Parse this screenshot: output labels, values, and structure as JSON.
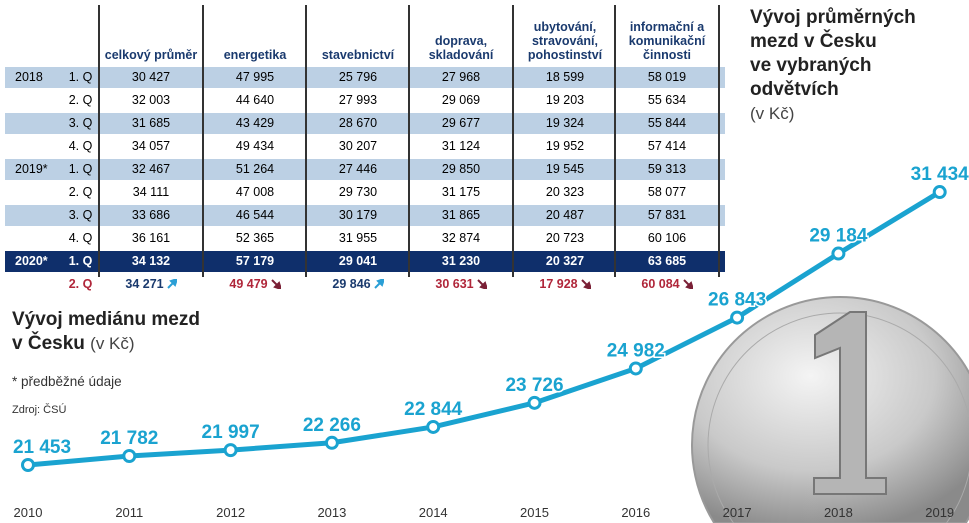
{
  "table": {
    "columns": [
      "celkový průměr",
      "energetika",
      "stavebnictví",
      "doprava, skladování",
      "ubytování, stravování, pohostinství",
      "informační a komunikační činnosti"
    ],
    "rows": [
      {
        "year": "2018",
        "quarter": "1. Q",
        "values": [
          "30 427",
          "47 995",
          "25 796",
          "27 968",
          "18 599",
          "58 019"
        ]
      },
      {
        "year": "",
        "quarter": "2. Q",
        "values": [
          "32 003",
          "44 640",
          "27 993",
          "29 069",
          "19 203",
          "55 634"
        ]
      },
      {
        "year": "",
        "quarter": "3. Q",
        "values": [
          "31 685",
          "43 429",
          "28 670",
          "29 677",
          "19 324",
          "55 844"
        ]
      },
      {
        "year": "",
        "quarter": "4. Q",
        "values": [
          "34 057",
          "49 434",
          "30 207",
          "31 124",
          "19 952",
          "57 414"
        ]
      },
      {
        "year": "2019*",
        "quarter": "1. Q",
        "values": [
          "32 467",
          "51 264",
          "27 446",
          "29 850",
          "19 545",
          "59 313"
        ]
      },
      {
        "year": "",
        "quarter": "2. Q",
        "values": [
          "34 111",
          "47 008",
          "29 730",
          "31 175",
          "20 323",
          "58 077"
        ]
      },
      {
        "year": "",
        "quarter": "3. Q",
        "values": [
          "33 686",
          "46 544",
          "30 179",
          "31 865",
          "20 487",
          "57 831"
        ]
      },
      {
        "year": "",
        "quarter": "4. Q",
        "values": [
          "36 161",
          "52 365",
          "31 955",
          "32 874",
          "20 723",
          "60 106"
        ]
      },
      {
        "year": "2020*",
        "quarter": "1. Q",
        "values": [
          "34 132",
          "57 179",
          "29 041",
          "31 230",
          "20 327",
          "63 685"
        ]
      },
      {
        "year": "",
        "quarter": "2. Q",
        "values": [
          "34 271",
          "49 479",
          "29 846",
          "30 631",
          "17 928",
          "60 084"
        ],
        "trend": [
          "up",
          "down",
          "up",
          "down",
          "down",
          "down"
        ]
      }
    ]
  },
  "title_avg": {
    "line1": "Vývoj průměrných",
    "line2": "mezd v Česku",
    "line3": "ve vybraných",
    "line4": "odvětvích",
    "unit": "(v Kč)"
  },
  "title_median": {
    "line1": "Vývoj mediánu mezd",
    "line2": "v Česku",
    "unit": "(v Kč)"
  },
  "note": "* předběžné údaje",
  "source": "Zdroj: ČSÚ",
  "colors": {
    "line": "#1aa3d0",
    "navy": "#0f2f6b",
    "band": "#bcd0e4",
    "down": "#b0263a",
    "up": "#2a9fd6"
  },
  "chart_data": {
    "type": "line",
    "x": [
      "2010",
      "2011",
      "2012",
      "2013",
      "2014",
      "2015",
      "2016",
      "2017",
      "2018",
      "2019"
    ],
    "values": [
      21453,
      21782,
      21997,
      22266,
      22844,
      23726,
      24982,
      26843,
      29184,
      31434
    ],
    "labels": [
      "21 453",
      "21 782",
      "21 997",
      "22 266",
      "22 844",
      "23 726",
      "24 982",
      "26 843",
      "29 184",
      "31 434"
    ],
    "title": "Vývoj mediánu mezd v Česku (v Kč)",
    "grid": false
  }
}
